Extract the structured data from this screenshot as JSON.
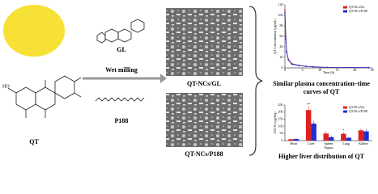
{
  "labels": {
    "qt": "QT",
    "gl": "GL",
    "wet_milling": "Wet milling",
    "p188": "P188",
    "sem_gl": "QT-NCs/GL",
    "sem_p188": "QT-NCs/P188",
    "plasma_caption": [
      "Similar  plasma concentration–time",
      "curves of QT"
    ],
    "liver_caption": "Higher liver distribution of QT"
  },
  "chart_data": [
    {
      "type": "line",
      "xlabel": "Time (h)",
      "ylabel": "QT Concentration (μg/mL)",
      "xlim": [
        0,
        25
      ],
      "xticks": [
        0,
        5,
        10,
        15,
        20,
        25
      ],
      "ylim": [
        0,
        120
      ],
      "yticks": [
        0,
        20,
        40,
        60,
        80,
        100,
        120
      ],
      "legend": "upper right",
      "x": [
        0,
        0.25,
        0.5,
        1,
        2,
        4,
        6,
        8,
        12,
        24
      ],
      "series": [
        {
          "name": "QT-NCs/GL",
          "color": "#e02020",
          "values": [
            110,
            60,
            32,
            16,
            8,
            5,
            3,
            2,
            1,
            0.5
          ]
        },
        {
          "name": "QT-NCs/P188",
          "color": "#2030d0",
          "values": [
            105,
            55,
            30,
            15,
            7,
            4.5,
            3,
            2,
            1,
            0.5
          ]
        }
      ]
    },
    {
      "type": "bar",
      "xlabel": "Organs",
      "ylabel": "AUC0-t (μg·h/g)",
      "ylim": [
        0,
        250
      ],
      "yticks": [
        0,
        50,
        100,
        150,
        200,
        250
      ],
      "legend": "upper right",
      "categories": [
        "Heart",
        "Liver",
        "Spleen",
        "Lung",
        "Kidney"
      ],
      "significance": [
        null,
        "**",
        null,
        "*",
        null
      ],
      "series": [
        {
          "name": "QT-NCs/GL",
          "color": "#e02020",
          "values": [
            10,
            215,
            50,
            48,
            72
          ],
          "errors": [
            3,
            25,
            15,
            10,
            12
          ]
        },
        {
          "name": "QT-NCs/P188",
          "color": "#2030d0",
          "values": [
            12,
            120,
            25,
            20,
            65
          ],
          "errors": [
            3,
            20,
            8,
            5,
            15
          ]
        }
      ]
    }
  ]
}
